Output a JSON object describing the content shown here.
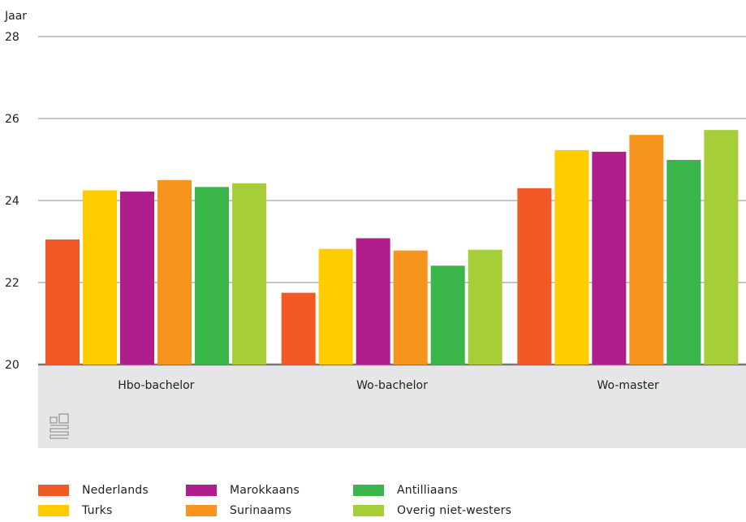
{
  "chart_data": {
    "type": "bar",
    "ylabel": "Jaar",
    "ylim": [
      20,
      28
    ],
    "yticks": [
      20,
      22,
      24,
      26,
      28
    ],
    "categories": [
      "Hbo-bachelor",
      "Wo-bachelor",
      "Wo-master"
    ],
    "series": [
      {
        "name": "Nederlands",
        "color": "#f15a24",
        "values": [
          23.05,
          21.75,
          24.3
        ]
      },
      {
        "name": "Turks",
        "color": "#ffcc00",
        "values": [
          24.25,
          22.82,
          25.23
        ]
      },
      {
        "name": "Marokkaans",
        "color": "#af1e8c",
        "values": [
          24.22,
          23.08,
          25.19
        ]
      },
      {
        "name": "Surinaams",
        "color": "#f7941d",
        "values": [
          24.5,
          22.78,
          25.6
        ]
      },
      {
        "name": "Antilliaans",
        "color": "#39b54a",
        "values": [
          24.33,
          22.41,
          24.99
        ]
      },
      {
        "name": "Overig niet-westers",
        "color": "#a6ce39",
        "values": [
          24.42,
          22.8,
          25.72
        ]
      }
    ],
    "grid": true,
    "legend_position": "bottom"
  }
}
